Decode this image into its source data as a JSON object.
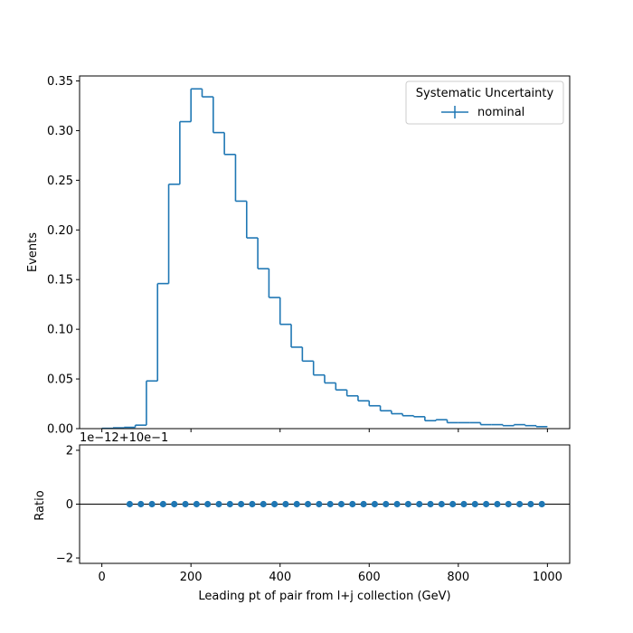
{
  "chart_data": [
    {
      "type": "histogram-step",
      "ylabel": "Events",
      "xlim": [
        -50,
        1050
      ],
      "ylim": [
        0,
        0.355
      ],
      "yticks": [
        "0.00",
        "0.05",
        "0.10",
        "0.15",
        "0.20",
        "0.25",
        "0.30",
        "0.35"
      ],
      "xticks": [
        0,
        200,
        400,
        600,
        800,
        1000
      ],
      "bin_edges": [
        0,
        25,
        50,
        75,
        100,
        125,
        150,
        175,
        200,
        225,
        250,
        275,
        300,
        325,
        350,
        375,
        400,
        425,
        450,
        475,
        500,
        525,
        550,
        575,
        600,
        625,
        650,
        675,
        700,
        725,
        750,
        775,
        800,
        825,
        850,
        875,
        900,
        925,
        950,
        975,
        1000
      ],
      "series": [
        {
          "name": "nominal",
          "values": [
            0.0003,
            0.0008,
            0.0013,
            0.0035,
            0.048,
            0.146,
            0.246,
            0.309,
            0.342,
            0.334,
            0.298,
            0.276,
            0.229,
            0.192,
            0.161,
            0.132,
            0.105,
            0.082,
            0.068,
            0.054,
            0.046,
            0.039,
            0.033,
            0.028,
            0.023,
            0.018,
            0.015,
            0.013,
            0.012,
            0.008,
            0.009,
            0.006,
            0.006,
            0.006,
            0.004,
            0.004,
            0.003,
            0.004,
            0.003,
            0.002
          ]
        }
      ],
      "legend": {
        "title": "Systematic Uncertainty",
        "entries": [
          "nominal"
        ],
        "placement": "top-right"
      },
      "color": "#1f77b4"
    },
    {
      "type": "scatter",
      "xlabel": "Leading pt of pair from l+j collection (GeV)",
      "ylabel": "Ratio",
      "offset_label": "1e−12+10e−1",
      "xlim": [
        -50,
        1050
      ],
      "ylim": [
        -2.2,
        2.2
      ],
      "yticks": [
        "−2",
        "0",
        "2"
      ],
      "xticks": [
        "0",
        "200",
        "400",
        "600",
        "800",
        "1000"
      ],
      "reference_line": 0,
      "x": [
        62.5,
        87.5,
        112.5,
        137.5,
        162.5,
        187.5,
        212.5,
        237.5,
        262.5,
        287.5,
        312.5,
        337.5,
        362.5,
        387.5,
        412.5,
        437.5,
        462.5,
        487.5,
        512.5,
        537.5,
        562.5,
        587.5,
        612.5,
        637.5,
        662.5,
        687.5,
        712.5,
        737.5,
        762.5,
        787.5,
        812.5,
        837.5,
        862.5,
        887.5,
        912.5,
        937.5,
        962.5,
        987.5
      ],
      "y": [
        0,
        0,
        0,
        0,
        0,
        0,
        0,
        0,
        0,
        0,
        0,
        0,
        0,
        0,
        0,
        0,
        0,
        0,
        0,
        0,
        0,
        0,
        0,
        0,
        0,
        0,
        0,
        0,
        0,
        0,
        0,
        0,
        0,
        0,
        0,
        0,
        0,
        0
      ],
      "color": "#1f77b4"
    }
  ]
}
